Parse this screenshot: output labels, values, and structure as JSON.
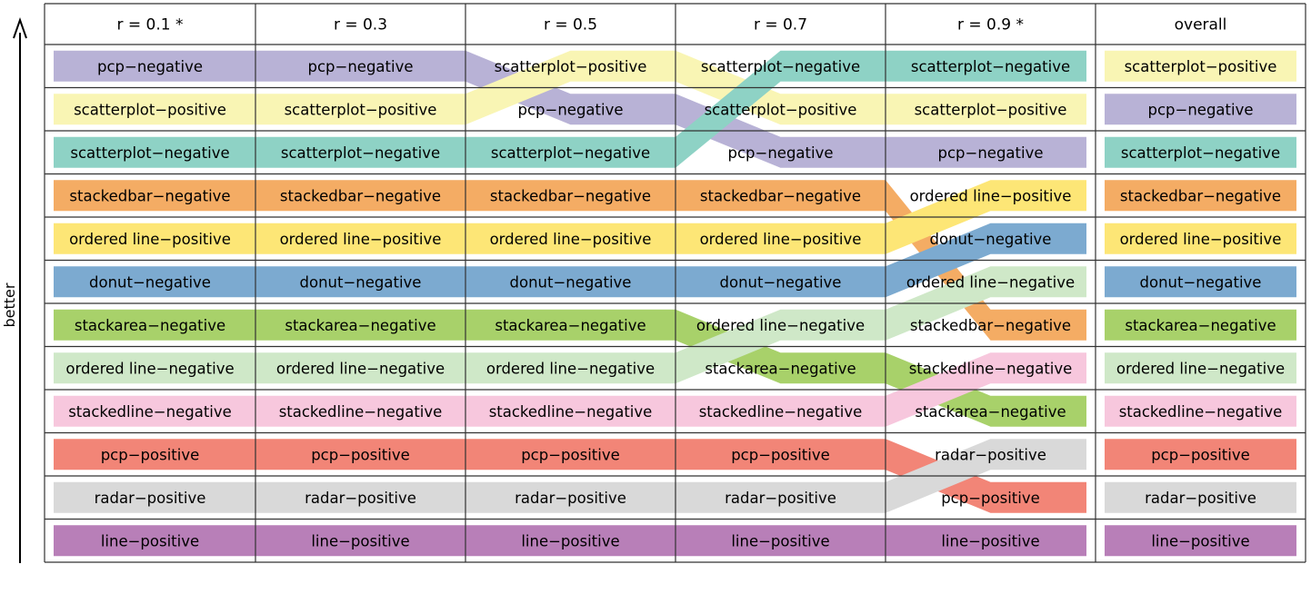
{
  "axis_label": "better",
  "columns": [
    {
      "label": "r = 0.1 *",
      "order": [
        "pcp−negative",
        "scatterplot−positive",
        "scatterplot−negative",
        "stackedbar−negative",
        "ordered line−positive",
        "donut−negative",
        "stackarea−negative",
        "ordered line−negative",
        "stackedline−negative",
        "pcp−positive",
        "radar−positive",
        "line−positive"
      ]
    },
    {
      "label": "r = 0.3",
      "order": [
        "pcp−negative",
        "scatterplot−positive",
        "scatterplot−negative",
        "stackedbar−negative",
        "ordered line−positive",
        "donut−negative",
        "stackarea−negative",
        "ordered line−negative",
        "stackedline−negative",
        "pcp−positive",
        "radar−positive",
        "line−positive"
      ]
    },
    {
      "label": "r = 0.5",
      "order": [
        "scatterplot−positive",
        "pcp−negative",
        "scatterplot−negative",
        "stackedbar−negative",
        "ordered line−positive",
        "donut−negative",
        "stackarea−negative",
        "ordered line−negative",
        "stackedline−negative",
        "pcp−positive",
        "radar−positive",
        "line−positive"
      ]
    },
    {
      "label": "r = 0.7",
      "order": [
        "scatterplot−negative",
        "scatterplot−positive",
        "pcp−negative",
        "stackedbar−negative",
        "ordered line−positive",
        "donut−negative",
        "ordered line−negative",
        "stackarea−negative",
        "stackedline−negative",
        "pcp−positive",
        "radar−positive",
        "line−positive"
      ]
    },
    {
      "label": "r = 0.9 *",
      "order": [
        "scatterplot−negative",
        "scatterplot−positive",
        "pcp−negative",
        "ordered line−positive",
        "donut−negative",
        "ordered line−negative",
        "stackedbar−negative",
        "stackedline−negative",
        "stackarea−negative",
        "radar−positive",
        "pcp−positive",
        "line−positive"
      ]
    },
    {
      "label": "overall",
      "order": [
        "scatterplot−positive",
        "pcp−negative",
        "scatterplot−negative",
        "stackedbar−negative",
        "ordered line−positive",
        "donut−negative",
        "stackarea−negative",
        "ordered line−negative",
        "stackedline−negative",
        "pcp−positive",
        "radar−positive",
        "line−positive"
      ]
    }
  ],
  "colors": {
    "pcp−negative": "#b8b2d6",
    "scatterplot−positive": "#f9f5b4",
    "scatterplot−negative": "#8ed2c5",
    "stackedbar−negative": "#f4ac64",
    "ordered line−positive": "#fde676",
    "donut−negative": "#7caad0",
    "stackarea−negative": "#a8d16a",
    "ordered line−negative": "#cfe8c8",
    "stackedline−negative": "#f7c7dd",
    "pcp−positive": "#f28577",
    "radar−positive": "#d9d9d9",
    "line−positive": "#b87fb8"
  },
  "grid_color": "#333333"
}
